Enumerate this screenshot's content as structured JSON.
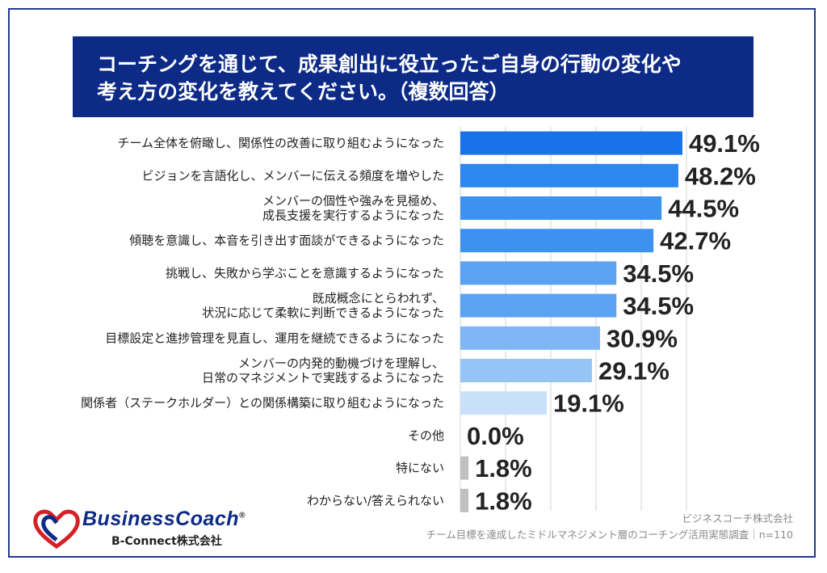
{
  "title": {
    "line1": "コーチングを通じて、成果創出に役立ったご自身の行動の変化や",
    "line2": "考え方の変化を教えてください。（複数回答）"
  },
  "chart_data": {
    "type": "bar",
    "orientation": "horizontal",
    "categories": [
      [
        "チーム全体を俯瞰し、関係性の改善に取り組むようになった"
      ],
      [
        "ビジョンを言語化し、メンバーに伝える頻度を増やした"
      ],
      [
        "メンバーの個性や強みを見極め、",
        "成長支援を実行するようになった"
      ],
      [
        "傾聴を意識し、本音を引き出す面談ができるようになった"
      ],
      [
        "挑戦し、失敗から学ぶことを意識するようになった"
      ],
      [
        "既成概念にとらわれず、",
        "状況に応じて柔軟に判断できるようになった"
      ],
      [
        "目標設定と進捗管理を見直し、運用を継続できるようになった"
      ],
      [
        "メンバーの内発的動機づけを理解し、",
        "日常のマネジメントで実践するようになった"
      ],
      [
        "関係者（ステークホルダー）との関係構築に取り組むようになった"
      ],
      [
        "その他"
      ],
      [
        "特にない"
      ],
      [
        "わからない/答えられない"
      ]
    ],
    "values": [
      49.1,
      48.2,
      44.5,
      42.7,
      34.5,
      34.5,
      30.9,
      29.1,
      19.1,
      0.0,
      1.8,
      1.8
    ],
    "value_labels": [
      "49.1%",
      "48.2%",
      "44.5%",
      "42.7%",
      "34.5%",
      "34.5%",
      "30.9%",
      "29.1%",
      "19.1%",
      "0.0%",
      "1.8%",
      "1.8%"
    ],
    "bar_colors": [
      "#1a72e8",
      "#2e86ef",
      "#3d92f0",
      "#3d92f0",
      "#5aa2f2",
      "#5aa2f2",
      "#7fb7f4",
      "#96c4f5",
      "#c9e0fa",
      "#c0c0c0",
      "#c0c0c0",
      "#c0c0c0"
    ],
    "xlim": [
      0,
      50
    ],
    "grid": true
  },
  "footer": {
    "company": "ビジネスコーチ株式会社",
    "survey": "チーム目標を達成したミドルマネジメント層のコーチング活用実態調査｜n=110"
  },
  "logo": {
    "brand": "BusinessCoach",
    "registered": "®",
    "sub": "B-Connect株式会社"
  }
}
